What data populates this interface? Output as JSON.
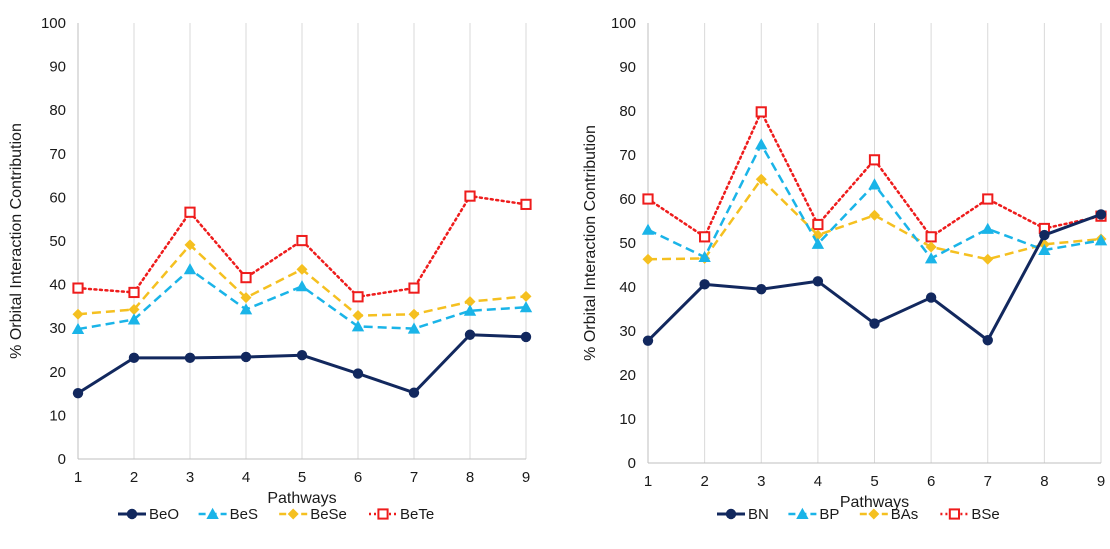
{
  "chart_data": [
    {
      "type": "line",
      "title": "",
      "xlabel": "Pathways",
      "ylabel": "% Orbital Interaction Contribution",
      "x": [
        1,
        2,
        3,
        4,
        5,
        6,
        7,
        8,
        9
      ],
      "ylim": [
        0,
        100
      ],
      "yticks": [
        0,
        10,
        20,
        30,
        40,
        50,
        60,
        70,
        80,
        90,
        100
      ],
      "grid": "vertical",
      "legend_position": "bottom",
      "series": [
        {
          "name": "BeO",
          "color": "#12285e",
          "marker": "circle",
          "line": "solid",
          "values": [
            15.1,
            23.2,
            23.2,
            23.4,
            23.8,
            19.6,
            15.2,
            28.5,
            28.0
          ]
        },
        {
          "name": "BeS",
          "color": "#1ab4e8",
          "marker": "triangle",
          "line": "dashed",
          "values": [
            29.8,
            32.0,
            43.5,
            34.3,
            39.6,
            30.4,
            29.9,
            34.0,
            34.8
          ]
        },
        {
          "name": "BeSe",
          "color": "#f5c020",
          "marker": "diamond",
          "line": "dashed",
          "values": [
            33.2,
            34.3,
            49.1,
            37.0,
            43.5,
            32.9,
            33.2,
            36.1,
            37.3
          ]
        },
        {
          "name": "BeTe",
          "color": "#ee1c1c",
          "marker": "square-open",
          "line": "dotted",
          "values": [
            39.2,
            38.2,
            56.6,
            41.6,
            50.1,
            37.2,
            39.2,
            60.3,
            58.4
          ]
        }
      ]
    },
    {
      "type": "line",
      "title": "",
      "xlabel": "Pathways",
      "ylabel": "% Orbital Interaction Contribution",
      "x": [
        1,
        2,
        3,
        4,
        5,
        6,
        7,
        8,
        9
      ],
      "ylim": [
        0,
        100
      ],
      "yticks": [
        0,
        10,
        20,
        30,
        40,
        50,
        60,
        70,
        80,
        90,
        100
      ],
      "grid": "vertical",
      "legend_position": "bottom",
      "series": [
        {
          "name": "BN",
          "color": "#12285e",
          "marker": "circle",
          "line": "solid",
          "values": [
            27.8,
            40.6,
            39.5,
            41.3,
            31.7,
            37.6,
            27.9,
            51.8,
            56.5
          ]
        },
        {
          "name": "BP",
          "color": "#1ab4e8",
          "marker": "triangle",
          "line": "dashed",
          "values": [
            53.0,
            46.8,
            72.4,
            49.8,
            63.3,
            46.5,
            53.2,
            48.4,
            50.6
          ]
        },
        {
          "name": "BAs",
          "color": "#f5c020",
          "marker": "diamond",
          "line": "dashed",
          "values": [
            46.3,
            46.5,
            64.5,
            51.8,
            56.3,
            49.1,
            46.3,
            49.7,
            50.9
          ]
        },
        {
          "name": "BSe",
          "color": "#ee1c1c",
          "marker": "square-open",
          "line": "dotted",
          "values": [
            60.0,
            51.4,
            79.8,
            54.2,
            68.9,
            51.4,
            60.0,
            53.3,
            56.1
          ]
        }
      ]
    }
  ]
}
